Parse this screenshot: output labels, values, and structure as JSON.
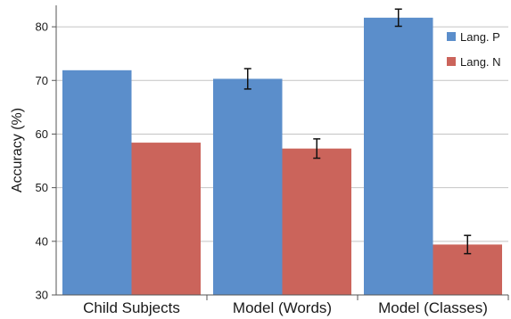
{
  "chart_data": {
    "type": "bar",
    "categories": [
      "Child Subjects",
      "Model (Words)",
      "Model (Classes)"
    ],
    "series": [
      {
        "name": "Lang. P",
        "color": "#5b8ecb",
        "values": [
          71.9,
          70.3,
          81.7
        ],
        "errors": [
          null,
          1.9,
          1.6
        ]
      },
      {
        "name": "Lang. N",
        "color": "#cb645b",
        "values": [
          58.4,
          57.3,
          39.4
        ],
        "errors": [
          null,
          1.8,
          1.7
        ]
      }
    ],
    "ylabel": "Accuracy (%)",
    "ylim": [
      30,
      84
    ],
    "yticks": [
      30,
      40,
      50,
      60,
      70,
      80
    ],
    "grid": true,
    "legend_position": "top-right"
  }
}
